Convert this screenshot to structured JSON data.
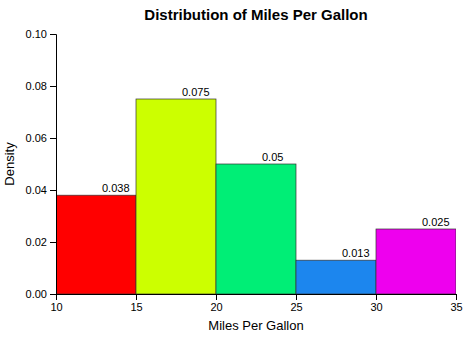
{
  "chart_data": {
    "type": "histogram",
    "title": "Distribution of Miles Per Gallon",
    "xlabel": "Miles Per Gallon",
    "ylabel": "Density",
    "bins": [
      10,
      15,
      20,
      25,
      30,
      35
    ],
    "values": [
      0.038,
      0.075,
      0.05,
      0.013,
      0.025
    ],
    "colors": [
      "#FF0000",
      "#CCFF00",
      "#00EE76",
      "#1C86EE",
      "#EE00EE"
    ],
    "data_labels": true,
    "xlim": [
      10,
      35
    ],
    "xticks": [
      10,
      15,
      20,
      25,
      30,
      35
    ],
    "ylim": [
      0,
      0.1
    ],
    "yticks": [
      {
        "value": 0,
        "label": "0.00"
      },
      0.02,
      0.04,
      0.06,
      0.08,
      {
        "value": 0.1,
        "label": "0.10"
      }
    ],
    "grid": false
  }
}
